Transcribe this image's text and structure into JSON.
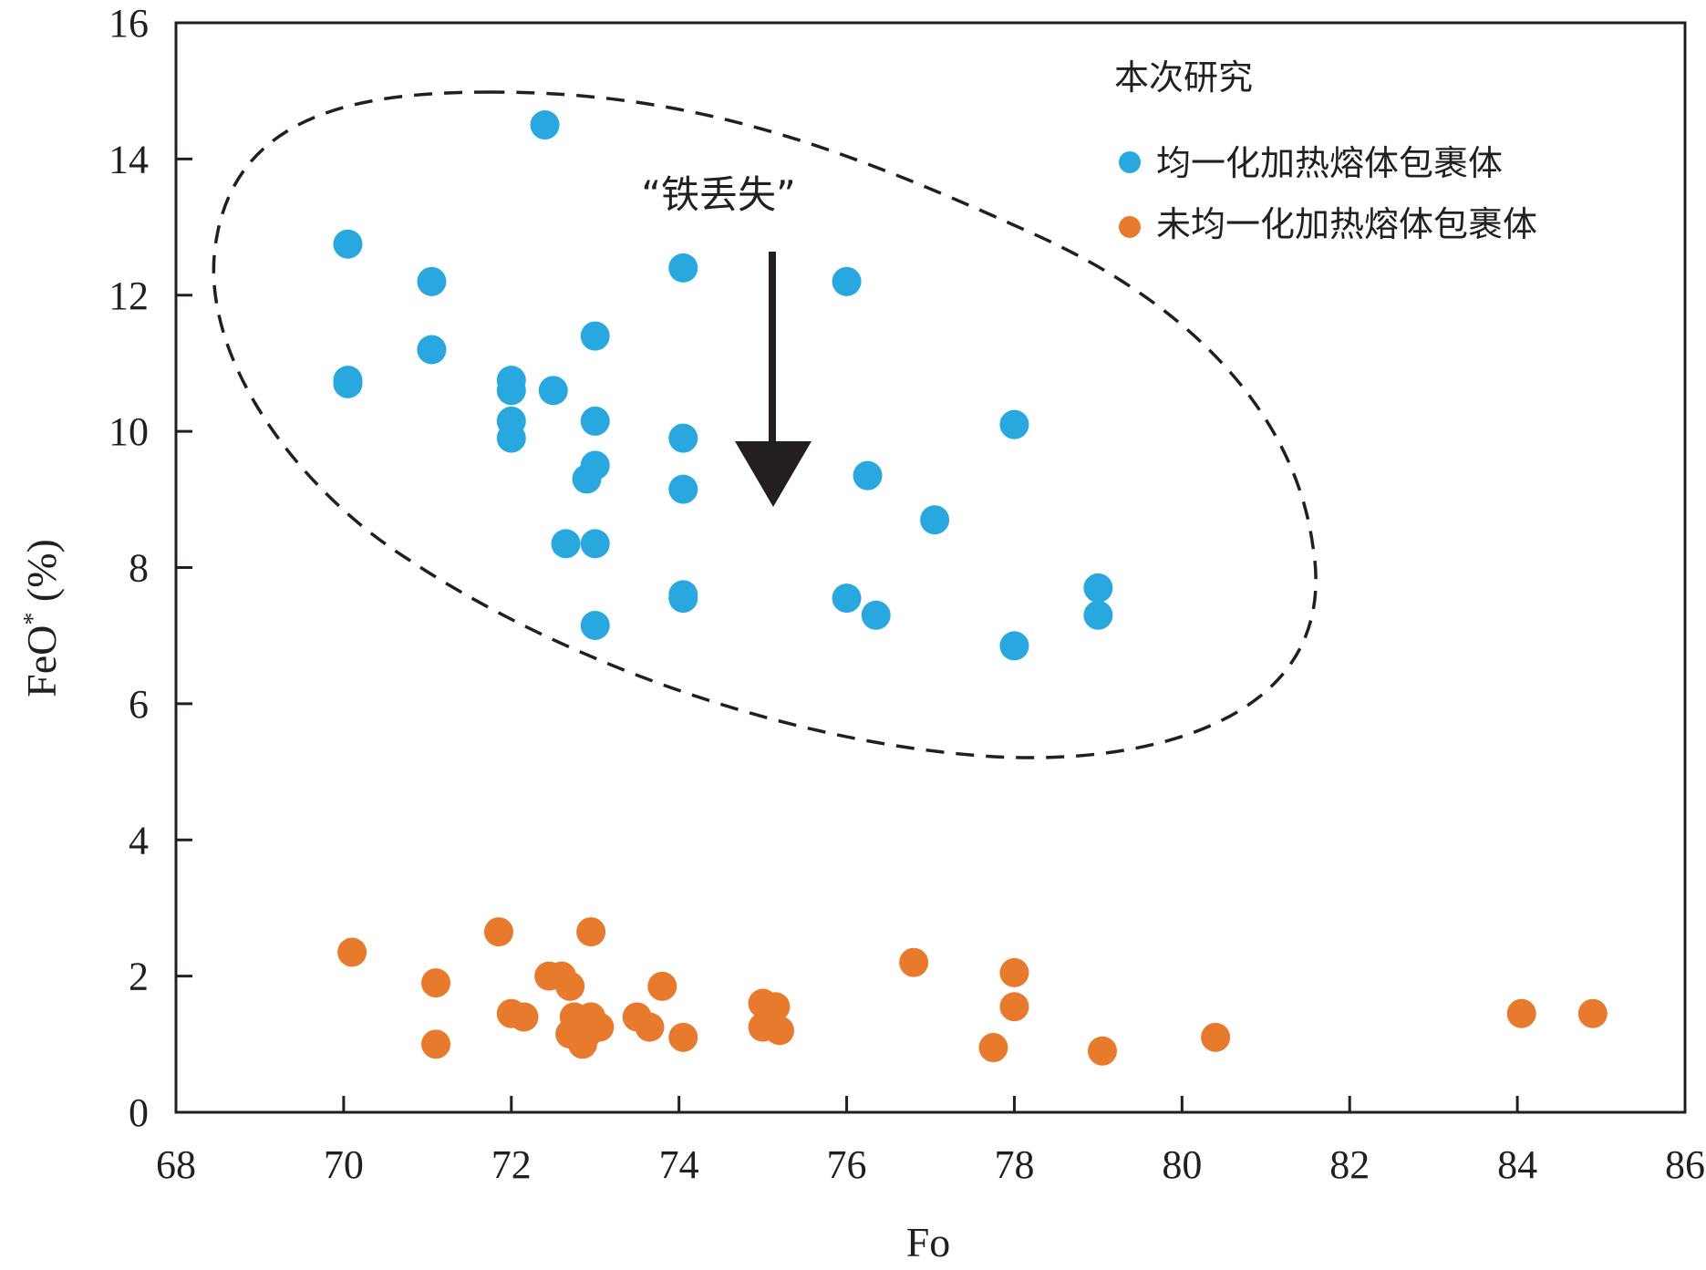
{
  "chart_data": {
    "type": "scatter",
    "xlabel": "Fo",
    "ylabel_main": "FeO",
    "ylabel_sup": "*",
    "ylabel_unit": " (%)",
    "xlim": [
      68,
      86
    ],
    "ylim": [
      0,
      16
    ],
    "xticks": [
      68,
      70,
      72,
      74,
      76,
      78,
      80,
      82,
      84,
      86
    ],
    "yticks": [
      0,
      2,
      4,
      6,
      8,
      10,
      12,
      14,
      16
    ],
    "grid": false,
    "legend_title": "本次研究",
    "legend_position": "top-right",
    "annotation": "“铁丢失”",
    "colors": {
      "homogenized": "#29a8df",
      "unhomogenized": "#e87a2e",
      "axis": "#231f20"
    },
    "series": [
      {
        "name": "均一化加热熔体包裹体",
        "color": "#29a8df",
        "points": [
          [
            72.4,
            14.5
          ],
          [
            70.05,
            12.75
          ],
          [
            71.05,
            12.2
          ],
          [
            74.05,
            12.4
          ],
          [
            76.0,
            12.2
          ],
          [
            73.0,
            11.4
          ],
          [
            71.05,
            11.2
          ],
          [
            70.05,
            10.75
          ],
          [
            70.05,
            10.7
          ],
          [
            72.0,
            10.75
          ],
          [
            72.0,
            10.6
          ],
          [
            72.5,
            10.6
          ],
          [
            72.0,
            10.15
          ],
          [
            73.0,
            10.15
          ],
          [
            78.0,
            10.1
          ],
          [
            72.0,
            9.9
          ],
          [
            74.05,
            9.9
          ],
          [
            73.0,
            9.5
          ],
          [
            72.9,
            9.3
          ],
          [
            76.25,
            9.35
          ],
          [
            74.05,
            9.15
          ],
          [
            77.05,
            8.7
          ],
          [
            72.65,
            8.35
          ],
          [
            73.0,
            8.35
          ],
          [
            74.05,
            7.6
          ],
          [
            74.05,
            7.55
          ],
          [
            76.0,
            7.55
          ],
          [
            79.0,
            7.7
          ],
          [
            76.35,
            7.3
          ],
          [
            79.0,
            7.3
          ],
          [
            73.0,
            7.15
          ],
          [
            78.0,
            6.85
          ]
        ]
      },
      {
        "name": "未均一化加热熔体包裹体",
        "color": "#e87a2e",
        "points": [
          [
            71.85,
            2.65
          ],
          [
            72.95,
            2.65
          ],
          [
            70.1,
            2.35
          ],
          [
            76.8,
            2.2
          ],
          [
            78.0,
            2.05
          ],
          [
            72.45,
            2.0
          ],
          [
            72.6,
            2.0
          ],
          [
            72.7,
            1.85
          ],
          [
            73.8,
            1.85
          ],
          [
            71.1,
            1.9
          ],
          [
            75.0,
            1.6
          ],
          [
            75.15,
            1.55
          ],
          [
            78.0,
            1.55
          ],
          [
            72.0,
            1.45
          ],
          [
            72.15,
            1.4
          ],
          [
            72.75,
            1.4
          ],
          [
            72.95,
            1.4
          ],
          [
            73.5,
            1.4
          ],
          [
            84.05,
            1.45
          ],
          [
            84.9,
            1.45
          ],
          [
            73.05,
            1.25
          ],
          [
            73.65,
            1.25
          ],
          [
            75.0,
            1.25
          ],
          [
            75.2,
            1.2
          ],
          [
            72.7,
            1.15
          ],
          [
            72.9,
            1.15
          ],
          [
            74.05,
            1.1
          ],
          [
            80.4,
            1.1
          ],
          [
            71.1,
            1.0
          ],
          [
            72.85,
            1.0
          ],
          [
            77.75,
            0.95
          ],
          [
            79.05,
            0.9
          ]
        ]
      }
    ]
  }
}
